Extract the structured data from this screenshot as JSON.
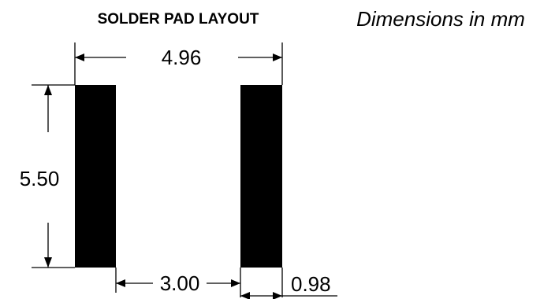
{
  "title": "SOLDER PAD LAYOUT",
  "units_note": "Dimensions in mm",
  "dimensions": {
    "overall_width": "4.96",
    "pad_height": "5.50",
    "pad_gap": "3.00",
    "pad_width": "0.98"
  },
  "colors": {
    "pad": "#000000",
    "background": "#ffffff",
    "dimension_lines": "#000000"
  }
}
